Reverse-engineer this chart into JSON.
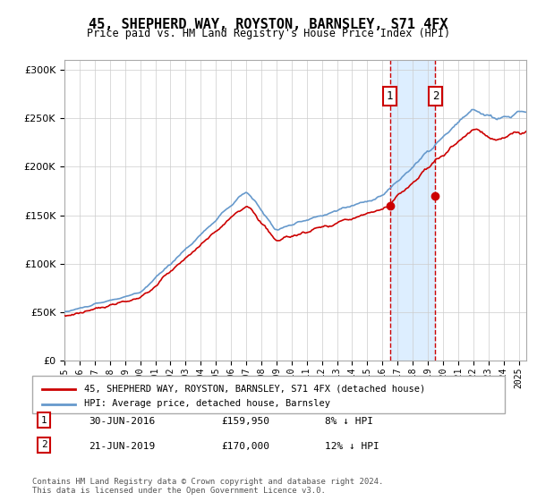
{
  "title": "45, SHEPHERD WAY, ROYSTON, BARNSLEY, S71 4FX",
  "subtitle": "Price paid vs. HM Land Registry's House Price Index (HPI)",
  "property_label": "45, SHEPHERD WAY, ROYSTON, BARNSLEY, S71 4FX (detached house)",
  "hpi_label": "HPI: Average price, detached house, Barnsley",
  "sale1_date": "30-JUN-2016",
  "sale1_price": 159950,
  "sale1_pct": "8% ↓ HPI",
  "sale2_date": "21-JUN-2019",
  "sale2_price": 170000,
  "sale2_pct": "12% ↓ HPI",
  "footnote": "Contains HM Land Registry data © Crown copyright and database right 2024.\nThis data is licensed under the Open Government Licence v3.0.",
  "property_color": "#cc0000",
  "hpi_color": "#6699cc",
  "highlight_color": "#ddeeff",
  "ylim": [
    0,
    310000
  ],
  "yticks": [
    0,
    50000,
    100000,
    150000,
    200000,
    250000,
    300000
  ],
  "start_year": 1995,
  "end_year": 2025
}
